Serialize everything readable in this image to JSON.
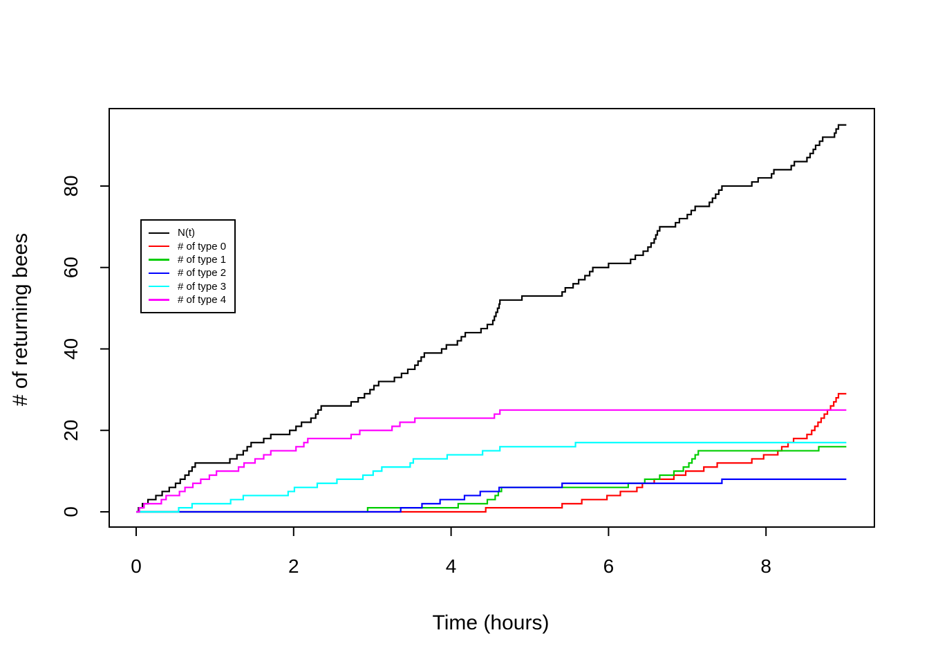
{
  "axis": {
    "x_label": "Time (hours)",
    "y_label": "# of returning bees"
  },
  "chart_data": {
    "type": "line",
    "style": "step-after",
    "title": "",
    "xlabel": "Time (hours)",
    "ylabel": "# of returning bees",
    "xlim": [
      -0.36,
      9.38
    ],
    "ylim": [
      -3.7,
      99
    ],
    "x_end": 9.02,
    "x_ticks": [
      0,
      2,
      4,
      6,
      8
    ],
    "x_tick_labels": [
      "0",
      "2",
      "4",
      "6",
      "8"
    ],
    "y_ticks": [
      0,
      20,
      40,
      60,
      80
    ],
    "y_tick_labels": [
      "0",
      "20",
      "40",
      "60",
      "80"
    ],
    "grid": false,
    "legend_position": "upper-left-inset",
    "legend_labels": [
      "N(t)",
      "# of type 0",
      "# of type 1",
      "# of type 2",
      "# of type 3",
      "# of type 4"
    ],
    "series": [
      {
        "name": "N(t)",
        "color": "#000000",
        "points": [
          [
            0,
            0
          ],
          [
            0.03,
            1
          ],
          [
            0.08,
            2
          ],
          [
            0.15,
            3
          ],
          [
            0.25,
            4
          ],
          [
            0.33,
            5
          ],
          [
            0.42,
            6
          ],
          [
            0.5,
            7
          ],
          [
            0.56,
            8
          ],
          [
            0.62,
            9
          ],
          [
            0.67,
            10
          ],
          [
            0.71,
            11
          ],
          [
            0.75,
            12
          ],
          [
            1.19,
            13
          ],
          [
            1.28,
            14
          ],
          [
            1.36,
            15
          ],
          [
            1.41,
            16
          ],
          [
            1.46,
            17
          ],
          [
            1.62,
            18
          ],
          [
            1.71,
            19
          ],
          [
            1.95,
            20
          ],
          [
            2.03,
            21
          ],
          [
            2.1,
            22
          ],
          [
            2.22,
            23
          ],
          [
            2.28,
            24
          ],
          [
            2.31,
            25
          ],
          [
            2.35,
            26
          ],
          [
            2.73,
            27
          ],
          [
            2.82,
            28
          ],
          [
            2.9,
            29
          ],
          [
            2.97,
            30
          ],
          [
            3.02,
            31
          ],
          [
            3.08,
            32
          ],
          [
            3.28,
            33
          ],
          [
            3.37,
            34
          ],
          [
            3.45,
            35
          ],
          [
            3.54,
            36
          ],
          [
            3.58,
            37
          ],
          [
            3.62,
            38
          ],
          [
            3.66,
            39
          ],
          [
            3.88,
            40
          ],
          [
            3.94,
            41
          ],
          [
            4.08,
            42
          ],
          [
            4.13,
            43
          ],
          [
            4.18,
            44
          ],
          [
            4.38,
            45
          ],
          [
            4.46,
            46
          ],
          [
            4.53,
            47
          ],
          [
            4.55,
            48
          ],
          [
            4.57,
            49
          ],
          [
            4.59,
            50
          ],
          [
            4.61,
            51
          ],
          [
            4.62,
            52
          ],
          [
            4.9,
            53
          ],
          [
            5.41,
            54
          ],
          [
            5.45,
            55
          ],
          [
            5.55,
            56
          ],
          [
            5.62,
            57
          ],
          [
            5.7,
            58
          ],
          [
            5.76,
            59
          ],
          [
            5.8,
            60
          ],
          [
            6.0,
            61
          ],
          [
            6.28,
            62
          ],
          [
            6.34,
            63
          ],
          [
            6.44,
            64
          ],
          [
            6.5,
            65
          ],
          [
            6.54,
            66
          ],
          [
            6.58,
            67
          ],
          [
            6.6,
            68
          ],
          [
            6.62,
            69
          ],
          [
            6.65,
            70
          ],
          [
            6.85,
            71
          ],
          [
            6.9,
            72
          ],
          [
            7.0,
            73
          ],
          [
            7.05,
            74
          ],
          [
            7.1,
            75
          ],
          [
            7.28,
            76
          ],
          [
            7.32,
            77
          ],
          [
            7.36,
            78
          ],
          [
            7.4,
            79
          ],
          [
            7.44,
            80
          ],
          [
            7.82,
            81
          ],
          [
            7.9,
            82
          ],
          [
            8.07,
            83
          ],
          [
            8.1,
            84
          ],
          [
            8.32,
            85
          ],
          [
            8.36,
            86
          ],
          [
            8.52,
            87
          ],
          [
            8.56,
            88
          ],
          [
            8.6,
            89
          ],
          [
            8.63,
            90
          ],
          [
            8.68,
            91
          ],
          [
            8.72,
            92
          ],
          [
            8.87,
            93
          ],
          [
            8.89,
            94
          ],
          [
            8.92,
            95
          ]
        ]
      },
      {
        "name": "# of type 0",
        "color": "#FF0000",
        "points": [
          [
            0,
            0
          ],
          [
            4.44,
            1
          ],
          [
            5.41,
            2
          ],
          [
            5.66,
            3
          ],
          [
            5.98,
            4
          ],
          [
            6.15,
            5
          ],
          [
            6.36,
            6
          ],
          [
            6.43,
            7
          ],
          [
            6.58,
            8
          ],
          [
            6.83,
            9
          ],
          [
            6.98,
            10
          ],
          [
            7.21,
            11
          ],
          [
            7.38,
            12
          ],
          [
            7.82,
            13
          ],
          [
            7.97,
            14
          ],
          [
            8.15,
            15
          ],
          [
            8.2,
            16
          ],
          [
            8.28,
            17
          ],
          [
            8.35,
            18
          ],
          [
            8.52,
            19
          ],
          [
            8.58,
            20
          ],
          [
            8.62,
            21
          ],
          [
            8.66,
            22
          ],
          [
            8.7,
            23
          ],
          [
            8.74,
            24
          ],
          [
            8.78,
            25
          ],
          [
            8.82,
            26
          ],
          [
            8.86,
            27
          ],
          [
            8.89,
            28
          ],
          [
            8.92,
            29
          ]
        ]
      },
      {
        "name": "# of type 1",
        "color": "#00CD00",
        "points": [
          [
            0,
            0
          ],
          [
            2.94,
            1
          ],
          [
            4.09,
            2
          ],
          [
            4.46,
            3
          ],
          [
            4.56,
            4
          ],
          [
            4.6,
            5
          ],
          [
            4.64,
            6
          ],
          [
            6.25,
            7
          ],
          [
            6.46,
            8
          ],
          [
            6.65,
            9
          ],
          [
            6.83,
            10
          ],
          [
            6.95,
            11
          ],
          [
            7.02,
            12
          ],
          [
            7.06,
            13
          ],
          [
            7.1,
            14
          ],
          [
            7.14,
            15
          ],
          [
            8.67,
            16
          ]
        ]
      },
      {
        "name": "# of type 2",
        "color": "#0000FF",
        "points": [
          [
            0,
            0
          ],
          [
            3.36,
            1
          ],
          [
            3.63,
            2
          ],
          [
            3.86,
            3
          ],
          [
            4.17,
            4
          ],
          [
            4.37,
            5
          ],
          [
            4.61,
            6
          ],
          [
            5.41,
            7
          ],
          [
            7.44,
            8
          ]
        ]
      },
      {
        "name": "# of type 3",
        "color": "#00FFFF",
        "points": [
          [
            0,
            0
          ],
          [
            0.54,
            1
          ],
          [
            0.71,
            2
          ],
          [
            1.2,
            3
          ],
          [
            1.36,
            4
          ],
          [
            1.93,
            5
          ],
          [
            2.01,
            6
          ],
          [
            2.3,
            7
          ],
          [
            2.55,
            8
          ],
          [
            2.88,
            9
          ],
          [
            3.01,
            10
          ],
          [
            3.12,
            11
          ],
          [
            3.48,
            12
          ],
          [
            3.52,
            13
          ],
          [
            3.95,
            14
          ],
          [
            4.4,
            15
          ],
          [
            4.62,
            16
          ],
          [
            5.58,
            17
          ]
        ]
      },
      {
        "name": "# of type 4",
        "color": "#FF00FF",
        "points": [
          [
            0,
            0
          ],
          [
            0.04,
            1
          ],
          [
            0.1,
            2
          ],
          [
            0.32,
            3
          ],
          [
            0.38,
            4
          ],
          [
            0.55,
            5
          ],
          [
            0.62,
            6
          ],
          [
            0.72,
            7
          ],
          [
            0.82,
            8
          ],
          [
            0.93,
            9
          ],
          [
            1.02,
            10
          ],
          [
            1.3,
            11
          ],
          [
            1.37,
            12
          ],
          [
            1.51,
            13
          ],
          [
            1.62,
            14
          ],
          [
            1.71,
            15
          ],
          [
            2.03,
            16
          ],
          [
            2.13,
            17
          ],
          [
            2.18,
            18
          ],
          [
            2.73,
            19
          ],
          [
            2.84,
            20
          ],
          [
            3.25,
            21
          ],
          [
            3.35,
            22
          ],
          [
            3.54,
            23
          ],
          [
            4.55,
            24
          ],
          [
            4.62,
            25
          ]
        ]
      }
    ]
  }
}
